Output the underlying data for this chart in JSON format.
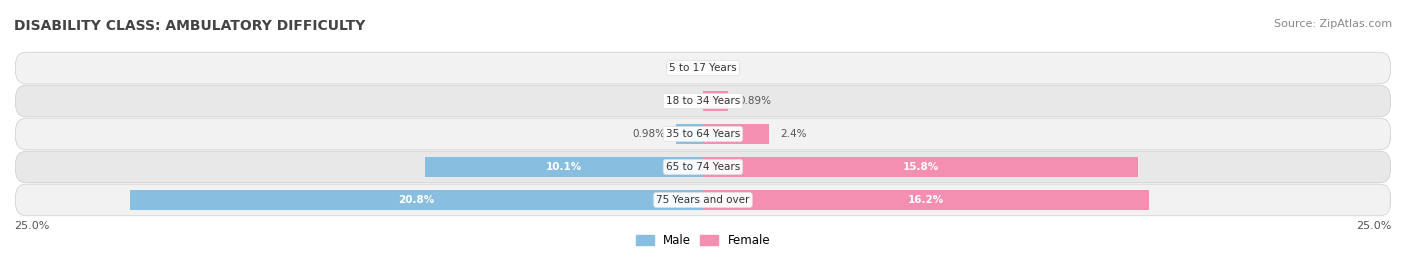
{
  "title": "DISABILITY CLASS: AMBULATORY DIFFICULTY",
  "source": "Source: ZipAtlas.com",
  "categories": [
    "5 to 17 Years",
    "18 to 34 Years",
    "35 to 64 Years",
    "65 to 74 Years",
    "75 Years and over"
  ],
  "male_values": [
    0.0,
    0.0,
    0.98,
    10.1,
    20.8
  ],
  "female_values": [
    0.0,
    0.89,
    2.4,
    15.8,
    16.2
  ],
  "max_val": 25.0,
  "male_color": "#88BEE0",
  "female_color": "#F48FB1",
  "row_bg_colors": [
    "#F2F2F2",
    "#E8E8E8"
  ],
  "title_fontsize": 10,
  "source_fontsize": 8,
  "bar_height": 0.62,
  "label_threshold": 2.5
}
